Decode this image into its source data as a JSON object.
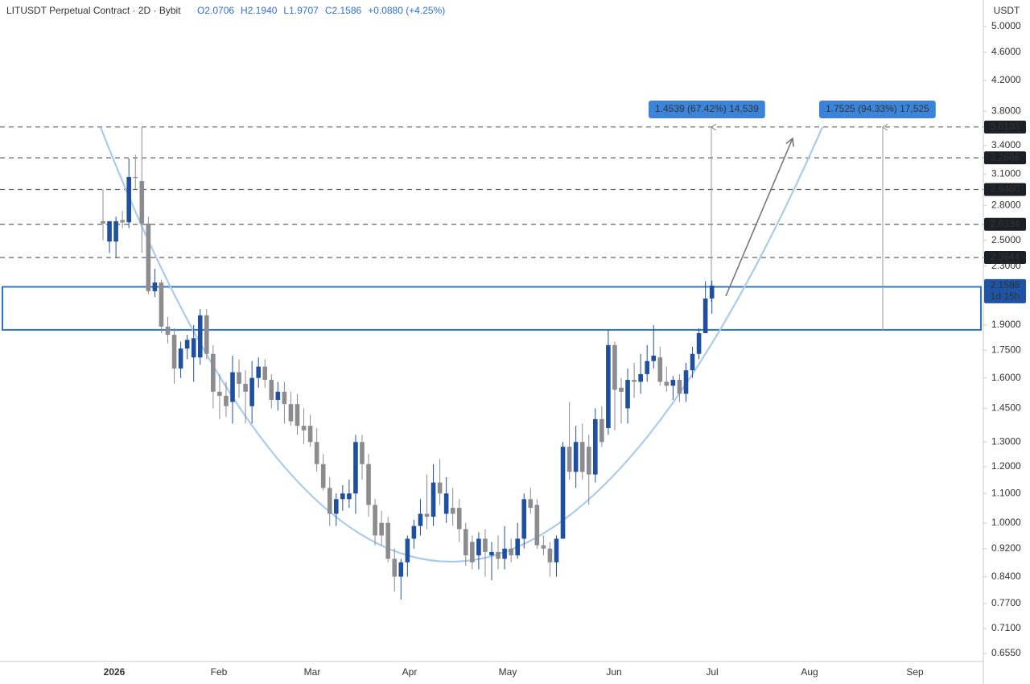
{
  "chart_data": {
    "type": "candlestick",
    "title": "LITUSDT Perpetual Contract · 2D · Bybit",
    "ohlc_text": [
      "O2.0706",
      "H2.1940",
      "L1.9707",
      "C2.1586",
      "+0.0880 (+4.25%)"
    ],
    "y_axis_label": "USDT",
    "log_scale": true,
    "grid": false,
    "up_color": "#1f4f9f",
    "down_color": "#8b8b90",
    "ylim": [
      0.638,
      5.45
    ],
    "yticks": [
      {
        "value": 5.0,
        "label": "5.0000"
      },
      {
        "value": 4.6,
        "label": "4.6000"
      },
      {
        "value": 4.2,
        "label": "4.2000"
      },
      {
        "value": 3.8,
        "label": "3.8000"
      },
      {
        "value": 3.4,
        "label": "3.4000"
      },
      {
        "value": 3.1,
        "label": "3.1000"
      },
      {
        "value": 2.8,
        "label": "2.8000"
      },
      {
        "value": 2.5,
        "label": "2.5000"
      },
      {
        "value": 2.3,
        "label": "2.3000"
      },
      {
        "value": 1.9,
        "label": "1.9000"
      },
      {
        "value": 1.75,
        "label": "1.7500"
      },
      {
        "value": 1.6,
        "label": "1.6000"
      },
      {
        "value": 1.45,
        "label": "1.4500"
      },
      {
        "value": 1.3,
        "label": "1.3000"
      },
      {
        "value": 1.2,
        "label": "1.2000"
      },
      {
        "value": 1.1,
        "label": "1.1000"
      },
      {
        "value": 1.0,
        "label": "1.0000"
      },
      {
        "value": 0.92,
        "label": "0.9200"
      },
      {
        "value": 0.84,
        "label": "0.8400"
      },
      {
        "value": 0.77,
        "label": "0.7700"
      },
      {
        "value": 0.71,
        "label": "0.7100"
      },
      {
        "value": 0.655,
        "label": "0.6550"
      }
    ],
    "x_labels": [
      "2026",
      "Feb",
      "Mar",
      "Apr",
      "May",
      "Jun",
      "Jul",
      "Aug",
      "Sep"
    ],
    "open": [
      2.66,
      2.49,
      2.49,
      2.67,
      2.65,
      3.07,
      3.03,
      2.64,
      2.12,
      2.18,
      1.89,
      1.84,
      1.65,
      1.76,
      1.71,
      1.71,
      1.96,
      1.73,
      1.53,
      1.51,
      1.48,
      1.63,
      1.57,
      1.46,
      1.6,
      1.66,
      1.59,
      1.49,
      1.53,
      1.47,
      1.47,
      1.37,
      1.37,
      1.3,
      1.21,
      1.12,
      1.03,
      1.08,
      1.08,
      1.1,
      1.3,
      1.21,
      1.06,
      1.0,
      1.0,
      0.89,
      0.84,
      0.88,
      0.95,
      0.99,
      1.03,
      1.02,
      1.14,
      1.03,
      1.05,
      1.05,
      0.98,
      0.94,
      0.9,
      0.95,
      0.9,
      0.91,
      0.89,
      0.92,
      0.9,
      0.95,
      1.08,
      1.06,
      0.93,
      0.92,
      0.88,
      0.95,
      1.28,
      1.18,
      1.3,
      1.28,
      1.17,
      1.4,
      1.36,
      1.78,
      1.55,
      1.45,
      1.59,
      1.58,
      1.62,
      1.69,
      1.71,
      1.58,
      1.56,
      1.59,
      1.52,
      1.64,
      1.73,
      1.85,
      2.0706
    ],
    "high": [
      2.95,
      2.66,
      2.7,
      2.75,
      3.26,
      3.3,
      3.61,
      2.7,
      2.28,
      2.2,
      1.95,
      1.88,
      1.8,
      1.84,
      1.9,
      2.0,
      2.0,
      1.78,
      1.62,
      1.58,
      1.72,
      1.7,
      1.64,
      1.69,
      1.71,
      1.7,
      1.62,
      1.58,
      1.58,
      1.53,
      1.52,
      1.45,
      1.42,
      1.36,
      1.25,
      1.16,
      1.1,
      1.13,
      1.15,
      1.33,
      1.33,
      1.25,
      1.08,
      1.04,
      1.02,
      0.92,
      0.89,
      0.96,
      1.01,
      1.08,
      1.17,
      1.21,
      1.23,
      1.16,
      1.12,
      1.08,
      1.0,
      0.96,
      0.97,
      0.98,
      0.94,
      0.96,
      0.99,
      0.95,
      1.0,
      1.1,
      1.12,
      1.08,
      0.96,
      0.94,
      0.96,
      1.3,
      1.48,
      1.37,
      1.38,
      1.33,
      1.45,
      1.46,
      1.87,
      1.8,
      1.6,
      1.65,
      1.68,
      1.73,
      1.78,
      1.9,
      1.77,
      1.66,
      1.61,
      1.62,
      1.68,
      1.77,
      1.88,
      2.19,
      2.194
    ],
    "low": [
      2.5,
      2.4,
      2.36,
      2.6,
      2.6,
      2.95,
      2.4,
      2.1,
      2.08,
      1.85,
      1.79,
      1.57,
      1.6,
      1.7,
      1.58,
      1.67,
      1.7,
      1.45,
      1.4,
      1.41,
      1.38,
      1.5,
      1.38,
      1.38,
      1.55,
      1.55,
      1.45,
      1.44,
      1.38,
      1.37,
      1.33,
      1.29,
      1.28,
      1.18,
      1.11,
      0.99,
      0.99,
      1.04,
      1.05,
      1.03,
      1.15,
      1.02,
      0.93,
      0.93,
      0.88,
      0.8,
      0.78,
      0.84,
      0.92,
      0.96,
      0.98,
      0.99,
      1.06,
      1.0,
      0.99,
      0.94,
      0.87,
      0.86,
      0.86,
      0.84,
      0.83,
      0.86,
      0.86,
      0.88,
      0.89,
      0.92,
      1.03,
      0.92,
      0.9,
      0.84,
      0.84,
      0.95,
      1.15,
      1.12,
      1.15,
      1.06,
      1.14,
      1.28,
      1.33,
      1.35,
      1.38,
      1.38,
      1.5,
      1.52,
      1.58,
      1.65,
      1.56,
      1.53,
      1.49,
      1.48,
      1.48,
      1.6,
      1.7,
      1.85,
      1.9707
    ],
    "close": [
      2.64,
      2.66,
      2.66,
      2.65,
      3.07,
      3.06,
      2.64,
      2.12,
      2.18,
      1.89,
      1.84,
      1.65,
      1.76,
      1.81,
      1.82,
      1.96,
      1.73,
      1.53,
      1.51,
      1.46,
      1.63,
      1.57,
      1.53,
      1.6,
      1.66,
      1.59,
      1.49,
      1.53,
      1.47,
      1.39,
      1.37,
      1.35,
      1.3,
      1.21,
      1.12,
      1.03,
      1.08,
      1.1,
      1.1,
      1.3,
      1.21,
      1.06,
      0.96,
      0.96,
      0.89,
      0.84,
      0.88,
      0.95,
      0.99,
      1.03,
      1.02,
      1.14,
      1.1,
      1.1,
      1.03,
      0.98,
      0.9,
      0.88,
      0.95,
      0.91,
      0.91,
      0.89,
      0.92,
      0.9,
      0.95,
      1.08,
      1.05,
      0.93,
      0.92,
      0.88,
      0.95,
      1.28,
      1.18,
      1.3,
      1.18,
      1.17,
      1.4,
      1.3,
      1.78,
      1.54,
      1.53,
      1.59,
      1.58,
      1.62,
      1.69,
      1.72,
      1.58,
      1.56,
      1.59,
      1.52,
      1.64,
      1.73,
      1.85,
      2.07,
      2.1586
    ],
    "levels": [
      {
        "value": 3.6103,
        "label": "3.6103"
      },
      {
        "value": 3.2666,
        "label": "3.2666"
      },
      {
        "value": 2.948,
        "label": "2.9480"
      },
      {
        "value": 2.6334,
        "label": "2.6334"
      },
      {
        "value": 2.3644,
        "label": "2.3644"
      }
    ],
    "last_price": {
      "value": 2.1586,
      "label": "2.1586",
      "countdown": "1d 15h"
    },
    "zone": [
      1.87,
      2.15
    ],
    "measures": [
      "1.4539 (67.42%) 14,539",
      "1.7525 (94.33%) 17,525"
    ]
  }
}
